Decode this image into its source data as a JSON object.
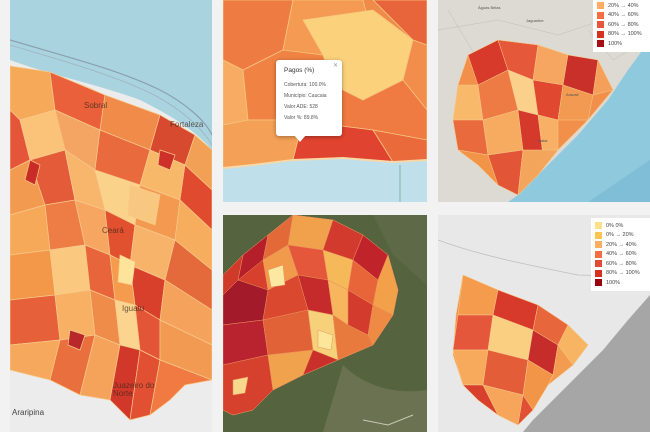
{
  "panel1": {
    "labels": {
      "fortaleza": "Fortaleza",
      "sobral": "Sobral",
      "ceara": "Ceará",
      "iguatu": "Iguatu",
      "juazeiro": "Juazeiro do Norte",
      "araripina": "Araripina"
    }
  },
  "panel2": {
    "popup": {
      "title": "Pagos (%)",
      "line1": "Cobertura: 100.0%",
      "line2": "Município: Caucaia",
      "line3": "Valor ADE: 528",
      "line4": "Valor %: 89.8%"
    }
  },
  "panel3": {
    "labels": {
      "a": "Águas Belas",
      "b": "Jaguaribe",
      "c": "Aracati",
      "d": "Natal"
    },
    "legend": [
      {
        "label": "20% → 40%",
        "color": "#fdae61"
      },
      {
        "label": "40% → 60%",
        "color": "#f46d43"
      },
      {
        "label": "60% → 80%",
        "color": "#e8553a"
      },
      {
        "label": "80% → 100%",
        "color": "#d7301f"
      },
      {
        "label": "100%",
        "color": "#a50f15"
      }
    ]
  },
  "panel5": {
    "legend": [
      {
        "label": "0% 0%",
        "color": "#fee08b"
      },
      {
        "label": "0% → 20%",
        "color": "#fec44f"
      },
      {
        "label": "20% → 40%",
        "color": "#fdae61"
      },
      {
        "label": "40% → 60%",
        "color": "#f46d43"
      },
      {
        "label": "60% → 80%",
        "color": "#e34a33"
      },
      {
        "label": "80% → 100%",
        "color": "#d7301f"
      },
      {
        "label": "100%",
        "color": "#99000d"
      }
    ]
  }
}
